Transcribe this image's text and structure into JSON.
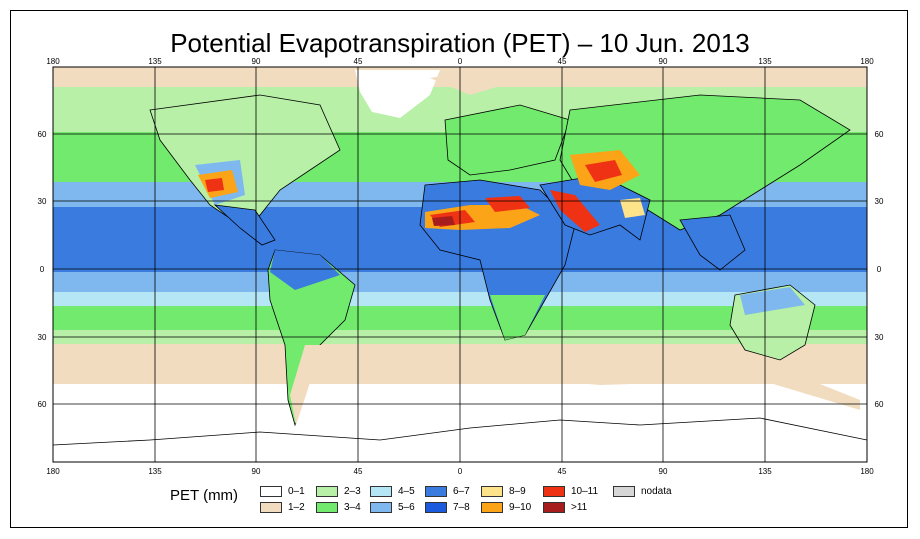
{
  "title": "Potential Evapotranspiration (PET) – 10 Jun. 2013",
  "axes": {
    "lon_labels": [
      "180",
      "135",
      "90",
      "45",
      "0",
      "45",
      "90",
      "135",
      "180"
    ],
    "lat_labels": [
      "60",
      "30",
      "0",
      "30",
      "60"
    ]
  },
  "legend": {
    "title": "PET (mm)",
    "items": [
      {
        "label": "0–1",
        "color": "#ffffff"
      },
      {
        "label": "1–2",
        "color": "#f2dcbf"
      },
      {
        "label": "2–3",
        "color": "#b7f0a6"
      },
      {
        "label": "3–4",
        "color": "#72ea6e"
      },
      {
        "label": "4–5",
        "color": "#b5e6f5"
      },
      {
        "label": "5–6",
        "color": "#7eb8ee"
      },
      {
        "label": "6–7",
        "color": "#3a7be0"
      },
      {
        "label": "7–8",
        "color": "#1a5bde"
      },
      {
        "label": "8–9",
        "color": "#fde389"
      },
      {
        "label": "9–10",
        "color": "#fba417"
      },
      {
        "label": "10–11",
        "color": "#ef3214"
      },
      {
        "label": ">11",
        "color": "#a71d1d"
      },
      {
        "label": "nodata",
        "color": "#d6d6d6"
      }
    ]
  },
  "colors": {
    "ocean_tropic": "#3a7be0",
    "ocean_subtropic": "#7eb8ee",
    "band_green": "#72ea6e",
    "band_lightgreen": "#b7f0a6",
    "band_tan": "#f2dcbf",
    "polar": "#ffffff"
  }
}
